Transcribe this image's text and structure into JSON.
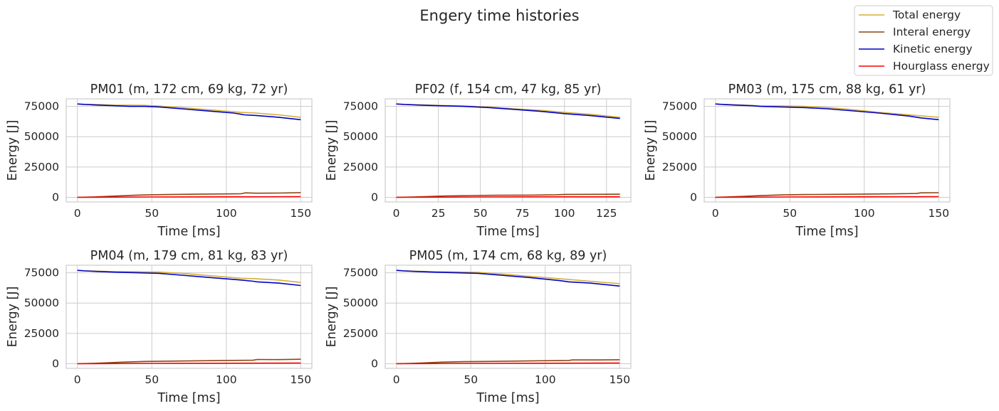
{
  "figure": {
    "suptitle": "Engery time histories"
  },
  "legend": {
    "placement": "top-right",
    "entries": [
      {
        "label": "Total energy",
        "color": "#d4af37"
      },
      {
        "label": "Interal energy",
        "color": "#8b4513"
      },
      {
        "label": "Kinetic energy",
        "color": "#0000cd"
      },
      {
        "label": "Hourglass energy",
        "color": "#ff0000"
      }
    ]
  },
  "chart_data": [
    {
      "type": "line",
      "title": "PM01 (m, 172 cm, 69 kg, 72 yr)",
      "xlabel": "Time [ms]",
      "ylabel": "Energy [J]",
      "xlim": [
        -7.5,
        157.5
      ],
      "ylim": [
        -3800,
        81200
      ],
      "xticks": [
        0,
        50,
        100,
        150
      ],
      "yticks": [
        0,
        25000,
        50000,
        75000
      ],
      "grid": true,
      "series": [
        {
          "name": "Total energy",
          "x": [
            0,
            5,
            15,
            25,
            35,
            45,
            55,
            70,
            90,
            110,
            120,
            135,
            150
          ],
          "y": [
            77000,
            76800,
            76500,
            76000,
            76000,
            75800,
            75200,
            74000,
            72000,
            70000,
            69500,
            68000,
            66000
          ]
        },
        {
          "name": "Interal energy",
          "x": [
            0,
            10,
            20,
            30,
            40,
            50,
            60,
            80,
            100,
            110,
            113,
            120,
            135,
            150
          ],
          "y": [
            0,
            300,
            800,
            1300,
            1800,
            2100,
            2300,
            2600,
            2800,
            3000,
            3700,
            3400,
            3500,
            3900
          ]
        },
        {
          "name": "Kinetic energy",
          "x": [
            0,
            5,
            15,
            25,
            35,
            45,
            55,
            70,
            90,
            105,
            110,
            112,
            120,
            135,
            150
          ],
          "y": [
            77000,
            76500,
            76000,
            75500,
            75000,
            75000,
            74500,
            73000,
            71000,
            69500,
            68500,
            68000,
            67500,
            66000,
            64000
          ]
        },
        {
          "name": "Hourglass energy",
          "x": [
            0,
            20,
            50,
            100,
            150
          ],
          "y": [
            0,
            150,
            300,
            450,
            600
          ]
        }
      ]
    },
    {
      "type": "line",
      "title": "PF02 (f, 154 cm, 47 kg, 85 yr)",
      "xlabel": "Time [ms]",
      "ylabel": "Energy [J]",
      "xlim": [
        -6.6,
        139.5
      ],
      "ylim": [
        -3800,
        81200
      ],
      "xticks": [
        0,
        25,
        50,
        75,
        100,
        125
      ],
      "yticks": [
        0,
        25000,
        50000,
        75000
      ],
      "grid": true,
      "series": [
        {
          "name": "Total energy",
          "x": [
            0,
            5,
            15,
            25,
            40,
            55,
            70,
            85,
            100,
            115,
            133
          ],
          "y": [
            77000,
            76700,
            76300,
            75800,
            75300,
            74500,
            73000,
            71800,
            70000,
            68500,
            66000
          ]
        },
        {
          "name": "Interal energy",
          "x": [
            0,
            10,
            20,
            30,
            45,
            60,
            80,
            95,
            100,
            115,
            133
          ],
          "y": [
            0,
            300,
            700,
            1200,
            1500,
            1700,
            1800,
            2100,
            2400,
            2500,
            2600
          ]
        },
        {
          "name": "Kinetic energy",
          "x": [
            0,
            5,
            15,
            25,
            40,
            55,
            70,
            85,
            100,
            115,
            133
          ],
          "y": [
            77000,
            76500,
            76000,
            75500,
            75000,
            74000,
            72500,
            71000,
            69000,
            67500,
            65000
          ]
        },
        {
          "name": "Hourglass energy",
          "x": [
            0,
            20,
            50,
            100,
            133
          ],
          "y": [
            0,
            150,
            300,
            400,
            450
          ]
        }
      ]
    },
    {
      "type": "line",
      "title": "PM03 (m, 175 cm, 88 kg, 61 yr)",
      "xlabel": "Time [ms]",
      "ylabel": "Energy [J]",
      "xlim": [
        -7.5,
        157.5
      ],
      "ylim": [
        -3800,
        81200
      ],
      "xticks": [
        0,
        50,
        100,
        150
      ],
      "yticks": [
        0,
        25000,
        50000,
        75000
      ],
      "grid": true,
      "series": [
        {
          "name": "Total energy",
          "x": [
            0,
            5,
            15,
            25,
            30,
            45,
            60,
            75,
            90,
            110,
            130,
            150
          ],
          "y": [
            77000,
            76700,
            76300,
            75700,
            75300,
            75300,
            75000,
            74000,
            72500,
            70000,
            68000,
            66000
          ]
        },
        {
          "name": "Interal energy",
          "x": [
            0,
            10,
            20,
            30,
            45,
            60,
            80,
            100,
            120,
            135,
            138,
            150
          ],
          "y": [
            0,
            400,
            900,
            1400,
            2000,
            2300,
            2500,
            2700,
            2900,
            3200,
            3700,
            3800
          ]
        },
        {
          "name": "Kinetic energy",
          "x": [
            0,
            5,
            15,
            25,
            30,
            45,
            60,
            75,
            90,
            110,
            130,
            138,
            150
          ],
          "y": [
            77000,
            76500,
            76000,
            75500,
            75000,
            74500,
            74000,
            73000,
            71500,
            69500,
            67000,
            65500,
            64000
          ]
        },
        {
          "name": "Hourglass energy",
          "x": [
            0,
            20,
            50,
            100,
            150
          ],
          "y": [
            0,
            150,
            300,
            450,
            600
          ]
        }
      ]
    },
    {
      "type": "line",
      "title": "PM04 (m, 179 cm, 81 kg, 83 yr)",
      "xlabel": "Time [ms]",
      "ylabel": "Energy [J]",
      "xlim": [
        -7.5,
        157.5
      ],
      "ylim": [
        -3800,
        81200
      ],
      "xticks": [
        0,
        50,
        100,
        150
      ],
      "yticks": [
        0,
        25000,
        50000,
        75000
      ],
      "grid": true,
      "series": [
        {
          "name": "Total energy",
          "x": [
            0,
            5,
            15,
            25,
            40,
            55,
            70,
            90,
            110,
            120,
            135,
            150
          ],
          "y": [
            77000,
            76600,
            76300,
            75800,
            75800,
            75500,
            74500,
            72500,
            70500,
            70000,
            69000,
            67000
          ]
        },
        {
          "name": "Interal energy",
          "x": [
            0,
            10,
            20,
            30,
            45,
            60,
            80,
            100,
            118,
            121,
            135,
            150
          ],
          "y": [
            0,
            300,
            800,
            1300,
            1900,
            2100,
            2400,
            2700,
            2900,
            3500,
            3400,
            3700
          ]
        },
        {
          "name": "Kinetic energy",
          "x": [
            0,
            5,
            15,
            25,
            40,
            55,
            70,
            90,
            110,
            118,
            121,
            135,
            150
          ],
          "y": [
            77000,
            76500,
            76000,
            75500,
            75000,
            74500,
            73000,
            71000,
            69000,
            68000,
            67500,
            66500,
            64500
          ]
        },
        {
          "name": "Hourglass energy",
          "x": [
            0,
            20,
            50,
            100,
            150
          ],
          "y": [
            0,
            150,
            300,
            450,
            550
          ]
        }
      ]
    },
    {
      "type": "line",
      "title": "PM05 (m, 174 cm, 68 kg, 89 yr)",
      "xlabel": "Time [ms]",
      "ylabel": "Energy [J]",
      "xlim": [
        -7.5,
        157.5
      ],
      "ylim": [
        -3800,
        81200
      ],
      "xticks": [
        0,
        50,
        100,
        150
      ],
      "yticks": [
        0,
        25000,
        50000,
        75000
      ],
      "grid": true,
      "series": [
        {
          "name": "Total energy",
          "x": [
            0,
            5,
            15,
            25,
            40,
            55,
            70,
            90,
            110,
            130,
            150
          ],
          "y": [
            77000,
            76600,
            76200,
            75800,
            75700,
            75300,
            74000,
            72000,
            70000,
            68000,
            66000
          ]
        },
        {
          "name": "Interal energy",
          "x": [
            0,
            10,
            20,
            30,
            45,
            60,
            80,
            100,
            116,
            118,
            135,
            150
          ],
          "y": [
            0,
            300,
            800,
            1300,
            1700,
            1900,
            2200,
            2500,
            2700,
            3100,
            3100,
            3300
          ]
        },
        {
          "name": "Kinetic energy",
          "x": [
            0,
            5,
            15,
            25,
            40,
            55,
            70,
            90,
            110,
            116,
            130,
            150
          ],
          "y": [
            77000,
            76500,
            76000,
            75500,
            75000,
            74500,
            73000,
            71000,
            68500,
            67500,
            66500,
            64000
          ]
        },
        {
          "name": "Hourglass energy",
          "x": [
            0,
            20,
            50,
            100,
            150
          ],
          "y": [
            0,
            150,
            300,
            450,
            550
          ]
        }
      ]
    }
  ]
}
